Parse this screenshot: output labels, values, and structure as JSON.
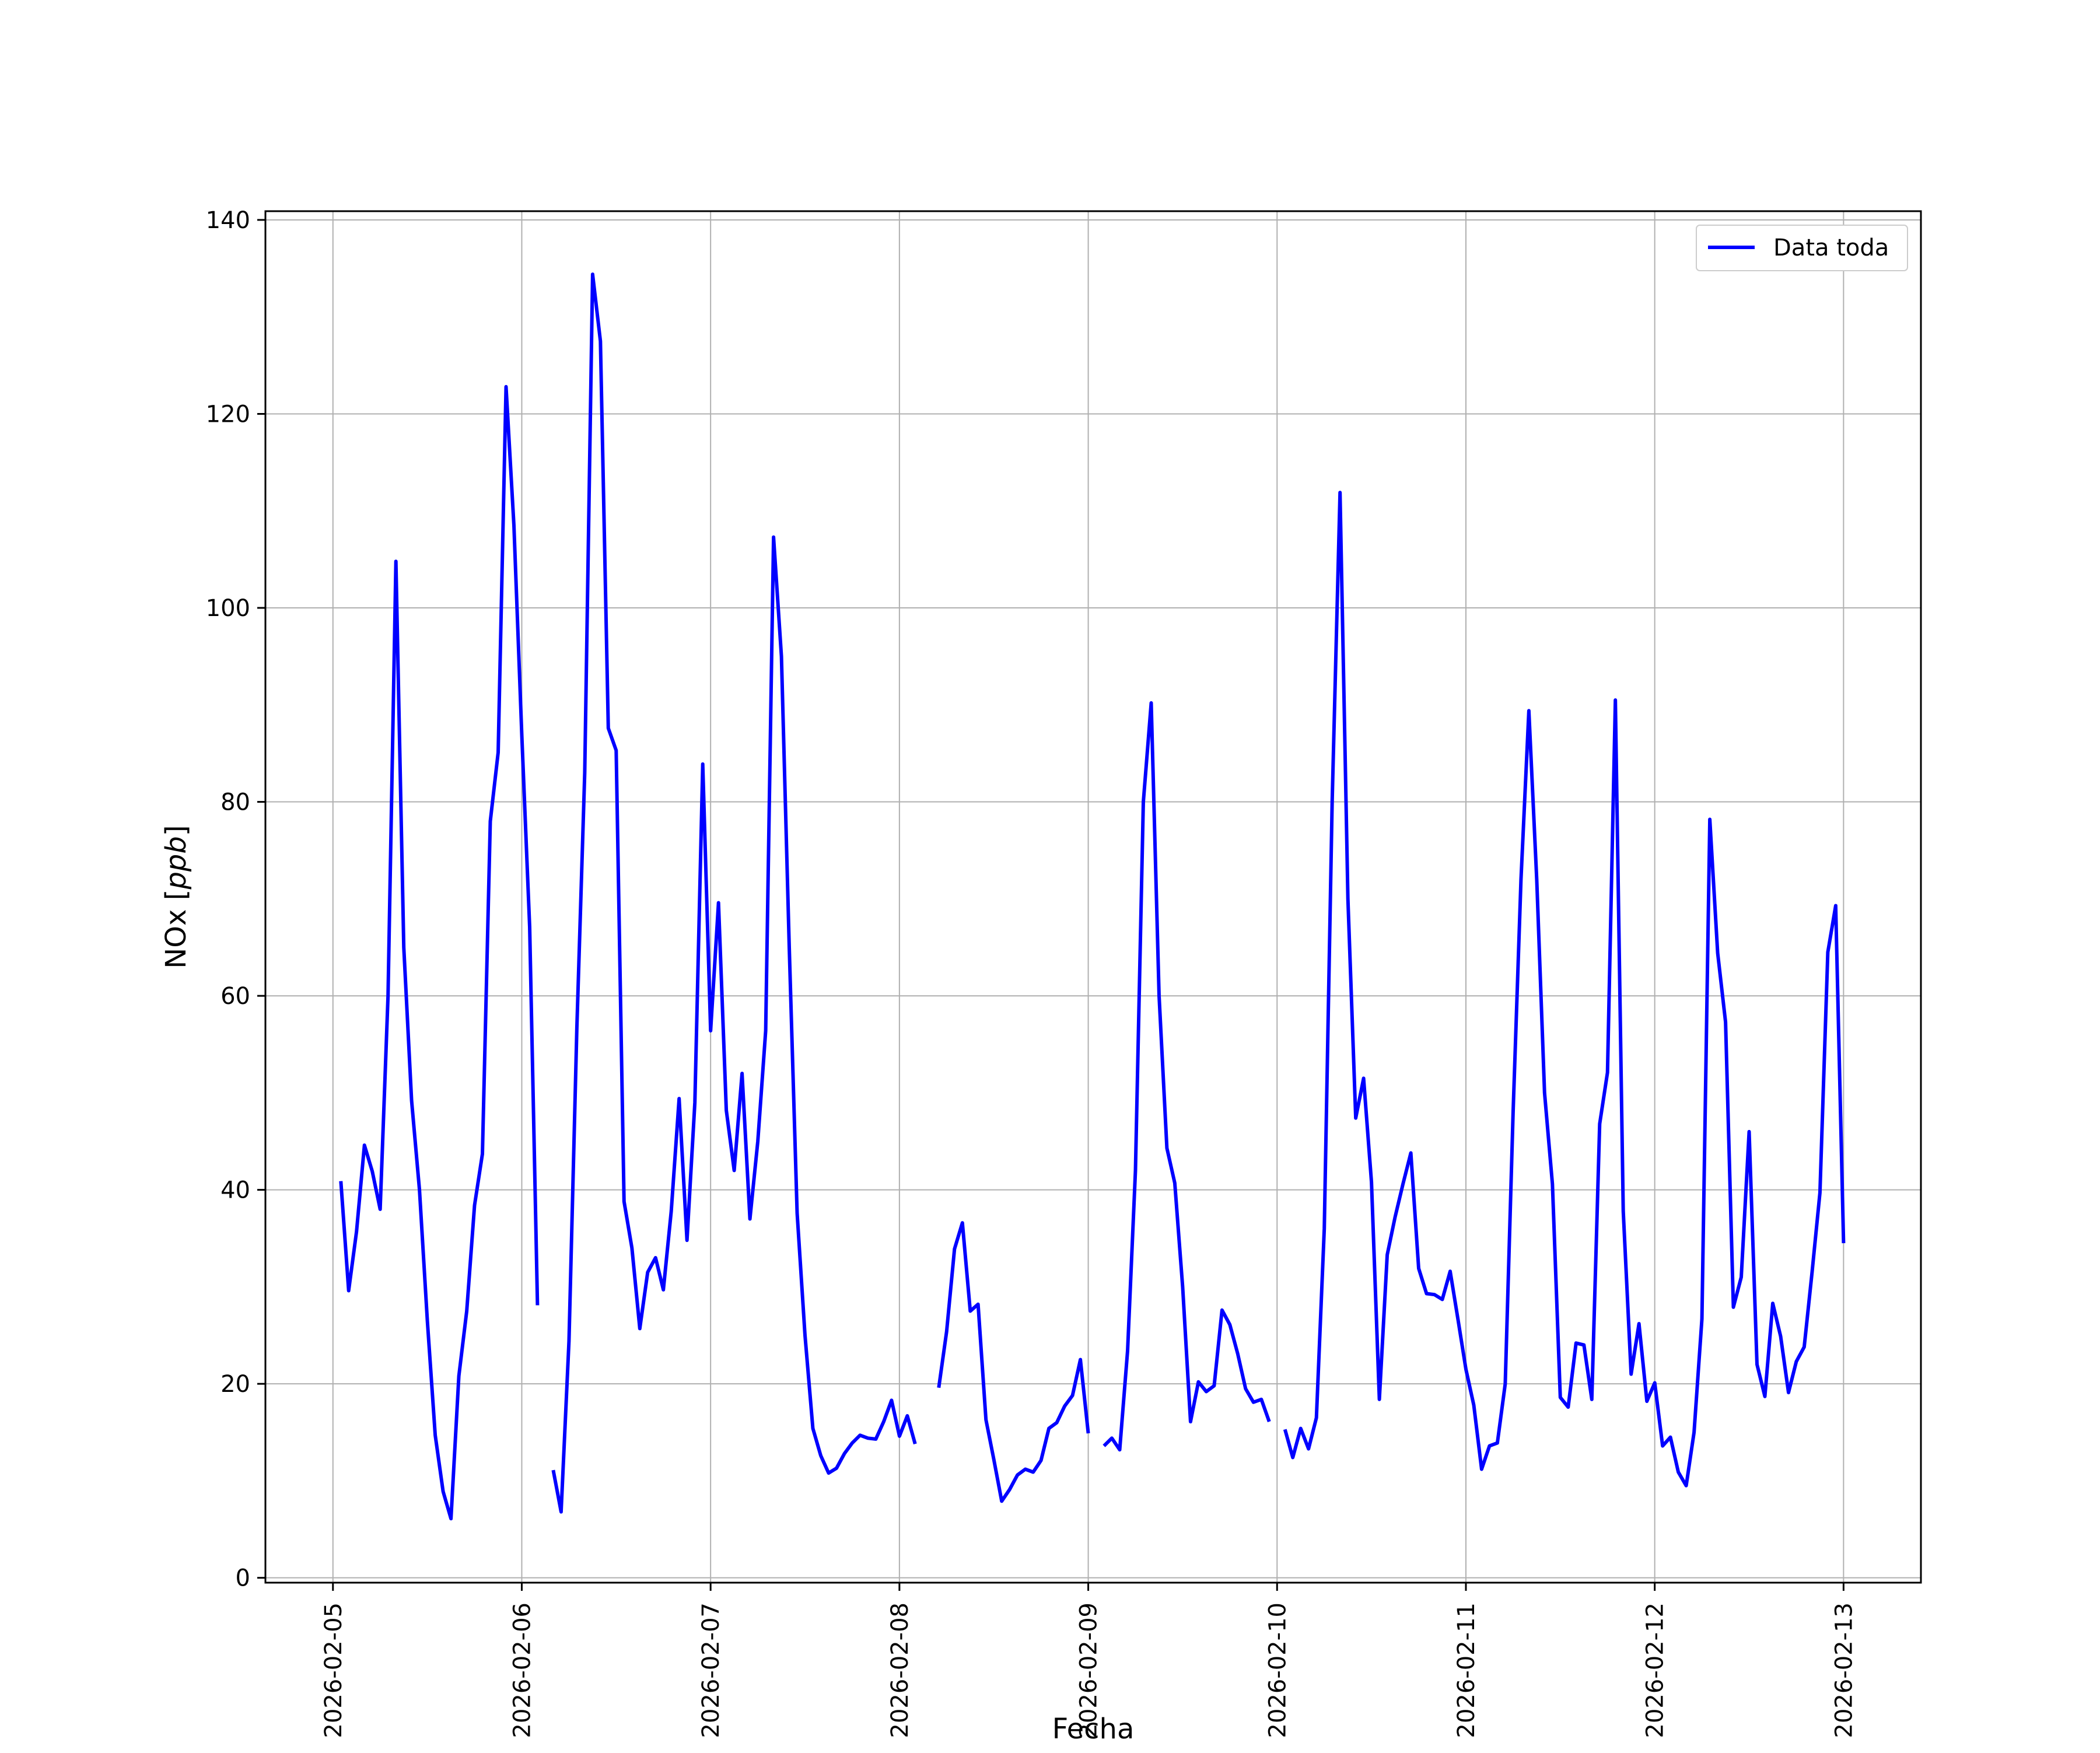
{
  "chart_data": {
    "type": "line",
    "title": "",
    "xlabel": "Fecha",
    "ylabel_prefix": "NOx [",
    "ylabel_unit": "ppb",
    "ylabel_suffix": "]",
    "xlim": [
      "2026-02-04 15:25",
      "2026-02-13 09:50"
    ],
    "ylim": [
      -0.5,
      140.9
    ],
    "grid": true,
    "legend_position": "top-right",
    "x_ticks": [
      "2026-02-05",
      "2026-02-06",
      "2026-02-07",
      "2026-02-08",
      "2026-02-09",
      "2026-02-10",
      "2026-02-11",
      "2026-02-12",
      "2026-02-13"
    ],
    "y_ticks": [
      0,
      20,
      40,
      60,
      80,
      100,
      120,
      140
    ],
    "series": [
      {
        "name": "Data toda",
        "color": "#0000ff",
        "points": [
          [
            "2026-02-05 01:00",
            40.9
          ],
          [
            "2026-02-05 02:00",
            29.6
          ],
          [
            "2026-02-05 03:00",
            35.7
          ],
          [
            "2026-02-05 04:00",
            44.6
          ],
          [
            "2026-02-05 05:00",
            41.9
          ],
          [
            "2026-02-05 06:00",
            38.0
          ],
          [
            "2026-02-05 07:00",
            60.0
          ],
          [
            "2026-02-05 08:00",
            104.8
          ],
          [
            "2026-02-05 09:00",
            65.0
          ],
          [
            "2026-02-05 10:00",
            49.2
          ],
          [
            "2026-02-05 11:00",
            40.0
          ],
          [
            "2026-02-05 12:00",
            26.5
          ],
          [
            "2026-02-05 13:00",
            14.7
          ],
          [
            "2026-02-05 14:00",
            8.9
          ],
          [
            "2026-02-05 15:00",
            6.1
          ],
          [
            "2026-02-05 16:00",
            20.8
          ],
          [
            "2026-02-05 17:00",
            27.5
          ],
          [
            "2026-02-05 18:00",
            38.4
          ],
          [
            "2026-02-05 19:00",
            43.7
          ],
          [
            "2026-02-05 20:00",
            78.0
          ],
          [
            "2026-02-05 21:00",
            85.1
          ],
          [
            "2026-02-05 22:00",
            122.8
          ],
          [
            "2026-02-05 23:00",
            108.5
          ],
          [
            "2026-02-06 00:00",
            86.9
          ],
          [
            "2026-02-06 01:00",
            67.1
          ],
          [
            "2026-02-06 02:00",
            28.1
          ],
          [
            "2026-02-06 03:00",
            null
          ],
          [
            "2026-02-06 04:00",
            11.1
          ],
          [
            "2026-02-06 05:00",
            6.8
          ],
          [
            "2026-02-06 06:00",
            24.4
          ],
          [
            "2026-02-06 07:00",
            56.7
          ],
          [
            "2026-02-06 08:00",
            83.0
          ],
          [
            "2026-02-06 09:00",
            134.4
          ],
          [
            "2026-02-06 10:00",
            127.5
          ],
          [
            "2026-02-06 11:00",
            87.6
          ],
          [
            "2026-02-06 12:00",
            85.3
          ],
          [
            "2026-02-06 13:00",
            38.8
          ],
          [
            "2026-02-06 14:00",
            34.0
          ],
          [
            "2026-02-06 15:00",
            25.7
          ],
          [
            "2026-02-06 16:00",
            31.5
          ],
          [
            "2026-02-06 17:00",
            33.0
          ],
          [
            "2026-02-06 18:00",
            29.7
          ],
          [
            "2026-02-06 19:00",
            37.8
          ],
          [
            "2026-02-06 20:00",
            49.4
          ],
          [
            "2026-02-06 21:00",
            34.8
          ],
          [
            "2026-02-06 22:00",
            49.0
          ],
          [
            "2026-02-06 23:00",
            83.9
          ],
          [
            "2026-02-07 00:00",
            56.4
          ],
          [
            "2026-02-07 01:00",
            69.6
          ],
          [
            "2026-02-07 02:00",
            48.2
          ],
          [
            "2026-02-07 03:00",
            42.0
          ],
          [
            "2026-02-07 04:00",
            52.0
          ],
          [
            "2026-02-07 05:00",
            37.0
          ],
          [
            "2026-02-07 06:00",
            45.0
          ],
          [
            "2026-02-07 07:00",
            56.4
          ],
          [
            "2026-02-07 08:00",
            107.3
          ],
          [
            "2026-02-07 09:00",
            95.0
          ],
          [
            "2026-02-07 10:00",
            65.0
          ],
          [
            "2026-02-07 11:00",
            37.6
          ],
          [
            "2026-02-07 12:00",
            25.0
          ],
          [
            "2026-02-07 13:00",
            15.4
          ],
          [
            "2026-02-07 14:00",
            12.6
          ],
          [
            "2026-02-07 15:00",
            10.8
          ],
          [
            "2026-02-07 16:00",
            11.3
          ],
          [
            "2026-02-07 17:00",
            12.8
          ],
          [
            "2026-02-07 18:00",
            13.9
          ],
          [
            "2026-02-07 19:00",
            14.7
          ],
          [
            "2026-02-07 20:00",
            14.4
          ],
          [
            "2026-02-07 21:00",
            14.3
          ],
          [
            "2026-02-07 22:00",
            16.1
          ],
          [
            "2026-02-07 23:00",
            18.3
          ],
          [
            "2026-02-08 00:00",
            14.6
          ],
          [
            "2026-02-08 01:00",
            16.7
          ],
          [
            "2026-02-08 02:00",
            13.8
          ],
          [
            "2026-02-08 03:00",
            null
          ],
          [
            "2026-02-08 04:00",
            null
          ],
          [
            "2026-02-08 05:00",
            19.6
          ],
          [
            "2026-02-08 06:00",
            25.4
          ],
          [
            "2026-02-08 07:00",
            33.9
          ],
          [
            "2026-02-08 08:00",
            36.6
          ],
          [
            "2026-02-08 09:00",
            27.5
          ],
          [
            "2026-02-08 10:00",
            28.2
          ],
          [
            "2026-02-08 11:00",
            16.3
          ],
          [
            "2026-02-08 12:00",
            12.2
          ],
          [
            "2026-02-08 13:00",
            7.9
          ],
          [
            "2026-02-08 14:00",
            9.1
          ],
          [
            "2026-02-08 15:00",
            10.6
          ],
          [
            "2026-02-08 16:00",
            11.2
          ],
          [
            "2026-02-08 17:00",
            10.9
          ],
          [
            "2026-02-08 18:00",
            12.1
          ],
          [
            "2026-02-08 19:00",
            15.4
          ],
          [
            "2026-02-08 20:00",
            16.0
          ],
          [
            "2026-02-08 21:00",
            17.7
          ],
          [
            "2026-02-08 22:00",
            18.8
          ],
          [
            "2026-02-08 23:00",
            22.5
          ],
          [
            "2026-02-09 00:00",
            14.9
          ],
          [
            "2026-02-09 01:00",
            null
          ],
          [
            "2026-02-09 02:00",
            13.6
          ],
          [
            "2026-02-09 03:00",
            14.4
          ],
          [
            "2026-02-09 04:00",
            13.2
          ],
          [
            "2026-02-09 05:00",
            23.4
          ],
          [
            "2026-02-09 06:00",
            42.0
          ],
          [
            "2026-02-09 07:00",
            80.0
          ],
          [
            "2026-02-09 08:00",
            90.2
          ],
          [
            "2026-02-09 09:00",
            60.0
          ],
          [
            "2026-02-09 10:00",
            44.3
          ],
          [
            "2026-02-09 11:00",
            40.7
          ],
          [
            "2026-02-09 12:00",
            30.0
          ],
          [
            "2026-02-09 13:00",
            16.1
          ],
          [
            "2026-02-09 14:00",
            20.2
          ],
          [
            "2026-02-09 15:00",
            19.2
          ],
          [
            "2026-02-09 16:00",
            19.8
          ],
          [
            "2026-02-09 17:00",
            27.6
          ],
          [
            "2026-02-09 18:00",
            26.1
          ],
          [
            "2026-02-09 19:00",
            23.1
          ],
          [
            "2026-02-09 20:00",
            19.5
          ],
          [
            "2026-02-09 21:00",
            18.1
          ],
          [
            "2026-02-09 22:00",
            18.4
          ],
          [
            "2026-02-09 23:00",
            16.1
          ],
          [
            "2026-02-10 00:00",
            null
          ],
          [
            "2026-02-10 01:00",
            15.3
          ],
          [
            "2026-02-10 02:00",
            12.4
          ],
          [
            "2026-02-10 03:00",
            15.4
          ],
          [
            "2026-02-10 04:00",
            13.3
          ],
          [
            "2026-02-10 05:00",
            16.5
          ],
          [
            "2026-02-10 06:00",
            36.0
          ],
          [
            "2026-02-10 07:00",
            80.0
          ],
          [
            "2026-02-10 08:00",
            111.9
          ],
          [
            "2026-02-10 09:00",
            70.0
          ],
          [
            "2026-02-10 10:00",
            47.4
          ],
          [
            "2026-02-10 11:00",
            51.5
          ],
          [
            "2026-02-10 12:00",
            40.8
          ],
          [
            "2026-02-10 13:00",
            18.4
          ],
          [
            "2026-02-10 14:00",
            33.3
          ],
          [
            "2026-02-10 15:00",
            37.2
          ],
          [
            "2026-02-10 16:00",
            40.6
          ],
          [
            "2026-02-10 17:00",
            43.8
          ],
          [
            "2026-02-10 18:00",
            31.9
          ],
          [
            "2026-02-10 19:00",
            29.3
          ],
          [
            "2026-02-10 20:00",
            29.2
          ],
          [
            "2026-02-10 21:00",
            28.7
          ],
          [
            "2026-02-10 22:00",
            31.6
          ],
          [
            "2026-02-10 23:00",
            26.6
          ],
          [
            "2026-02-11 00:00",
            21.5
          ],
          [
            "2026-02-11 01:00",
            17.8
          ],
          [
            "2026-02-11 02:00",
            11.2
          ],
          [
            "2026-02-11 03:00",
            13.6
          ],
          [
            "2026-02-11 04:00",
            13.9
          ],
          [
            "2026-02-11 05:00",
            20.0
          ],
          [
            "2026-02-11 06:00",
            48.0
          ],
          [
            "2026-02-11 07:00",
            72.0
          ],
          [
            "2026-02-11 08:00",
            89.4
          ],
          [
            "2026-02-11 09:00",
            72.0
          ],
          [
            "2026-02-11 10:00",
            50.0
          ],
          [
            "2026-02-11 11:00",
            40.6
          ],
          [
            "2026-02-11 12:00",
            18.6
          ],
          [
            "2026-02-11 13:00",
            17.6
          ],
          [
            "2026-02-11 14:00",
            24.2
          ],
          [
            "2026-02-11 15:00",
            24.0
          ],
          [
            "2026-02-11 16:00",
            18.4
          ],
          [
            "2026-02-11 17:00",
            46.8
          ],
          [
            "2026-02-11 18:00",
            52.1
          ],
          [
            "2026-02-11 19:00",
            90.5
          ],
          [
            "2026-02-11 20:00",
            37.8
          ],
          [
            "2026-02-11 21:00",
            21.0
          ],
          [
            "2026-02-11 22:00",
            26.2
          ],
          [
            "2026-02-11 23:00",
            18.2
          ],
          [
            "2026-02-12 00:00",
            20.1
          ],
          [
            "2026-02-12 01:00",
            13.6
          ],
          [
            "2026-02-12 02:00",
            14.5
          ],
          [
            "2026-02-12 03:00",
            10.9
          ],
          [
            "2026-02-12 04:00",
            9.5
          ],
          [
            "2026-02-12 05:00",
            15.0
          ],
          [
            "2026-02-12 06:00",
            26.7
          ],
          [
            "2026-02-12 07:00",
            78.2
          ],
          [
            "2026-02-12 08:00",
            64.4
          ],
          [
            "2026-02-12 09:00",
            57.3
          ],
          [
            "2026-02-12 10:00",
            27.9
          ],
          [
            "2026-02-12 11:00",
            31.0
          ],
          [
            "2026-02-12 12:00",
            46.0
          ],
          [
            "2026-02-12 13:00",
            22.0
          ],
          [
            "2026-02-12 14:00",
            18.7
          ],
          [
            "2026-02-12 15:00",
            28.3
          ],
          [
            "2026-02-12 16:00",
            24.9
          ],
          [
            "2026-02-12 17:00",
            19.1
          ],
          [
            "2026-02-12 18:00",
            22.3
          ],
          [
            "2026-02-12 19:00",
            23.8
          ],
          [
            "2026-02-12 20:00",
            31.5
          ],
          [
            "2026-02-12 21:00",
            39.7
          ],
          [
            "2026-02-12 22:00",
            64.5
          ],
          [
            "2026-02-12 23:00",
            69.3
          ],
          [
            "2026-02-13 00:00",
            34.5
          ]
        ]
      }
    ]
  }
}
